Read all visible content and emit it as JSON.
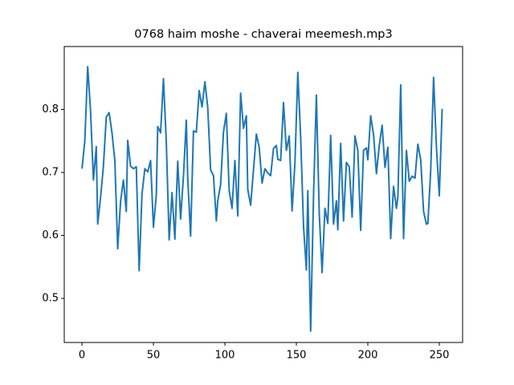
{
  "chart_data": {
    "type": "line",
    "title": "0768 haim moshe - chaverai meemesh.mp3",
    "x": [
      0,
      2,
      4,
      6,
      8,
      10,
      11,
      13,
      15,
      17,
      19,
      21,
      23,
      25,
      27,
      29,
      31,
      32,
      34,
      36,
      38,
      40,
      42,
      44,
      46,
      48,
      50,
      52,
      53,
      55,
      57,
      59,
      61,
      63,
      65,
      67,
      69,
      71,
      73,
      74,
      76,
      78,
      80,
      82,
      84,
      86,
      88,
      90,
      92,
      94,
      95,
      97,
      99,
      101,
      103,
      105,
      107,
      109,
      111,
      113,
      115,
      116,
      118,
      120,
      122,
      124,
      126,
      128,
      130,
      132,
      134,
      136,
      137,
      139,
      141,
      143,
      145,
      147,
      149,
      151,
      153,
      155,
      157,
      158,
      160,
      162,
      164,
      166,
      168,
      170,
      172,
      174,
      176,
      178,
      179,
      181,
      183,
      185,
      187,
      189,
      191,
      193,
      195,
      197,
      199,
      200,
      202,
      204,
      206,
      208,
      210,
      212,
      214,
      216,
      218,
      220,
      221,
      223,
      225,
      227,
      229,
      231,
      233,
      235,
      237,
      239,
      241,
      242,
      244,
      246,
      248,
      250,
      252
    ],
    "series": [
      {
        "color": "#1f77b4",
        "values": [
          0.706,
          0.75,
          0.868,
          0.798,
          0.688,
          0.741,
          0.618,
          0.66,
          0.71,
          0.788,
          0.795,
          0.763,
          0.719,
          0.579,
          0.654,
          0.688,
          0.638,
          0.751,
          0.71,
          0.706,
          0.709,
          0.544,
          0.666,
          0.706,
          0.701,
          0.719,
          0.613,
          0.664,
          0.773,
          0.763,
          0.849,
          0.748,
          0.593,
          0.668,
          0.594,
          0.718,
          0.626,
          0.694,
          0.783,
          0.691,
          0.599,
          0.766,
          0.764,
          0.83,
          0.804,
          0.844,
          0.803,
          0.704,
          0.695,
          0.623,
          0.655,
          0.681,
          0.764,
          0.794,
          0.671,
          0.643,
          0.719,
          0.631,
          0.826,
          0.77,
          0.79,
          0.673,
          0.648,
          0.704,
          0.761,
          0.74,
          0.683,
          0.706,
          0.699,
          0.695,
          0.738,
          0.743,
          0.721,
          0.719,
          0.811,
          0.735,
          0.758,
          0.639,
          0.715,
          0.859,
          0.756,
          0.615,
          0.545,
          0.671,
          0.448,
          0.663,
          0.823,
          0.635,
          0.541,
          0.643,
          0.619,
          0.759,
          0.618,
          0.655,
          0.609,
          0.746,
          0.623,
          0.716,
          0.709,
          0.629,
          0.758,
          0.735,
          0.608,
          0.735,
          0.739,
          0.72,
          0.79,
          0.76,
          0.698,
          0.743,
          0.775,
          0.708,
          0.74,
          0.595,
          0.678,
          0.643,
          0.66,
          0.839,
          0.595,
          0.735,
          0.686,
          0.694,
          0.691,
          0.745,
          0.72,
          0.638,
          0.618,
          0.619,
          0.704,
          0.851,
          0.74,
          0.663,
          0.801
        ]
      }
    ],
    "xlim": [
      -12.4,
      266.3
    ],
    "xticks": [
      0,
      50,
      100,
      150,
      200,
      250
    ],
    "ylim": [
      0.43,
      0.9
    ],
    "yticks": [
      0.5,
      0.6,
      0.7,
      0.8
    ]
  }
}
